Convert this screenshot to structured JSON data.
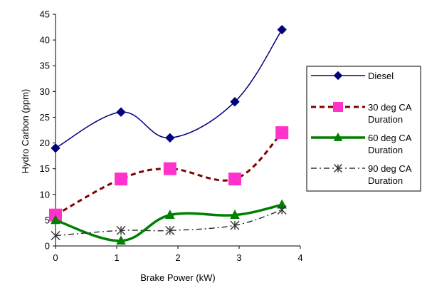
{
  "chart_data": {
    "type": "line",
    "title": "",
    "xlabel": "Brake Power (kW)",
    "ylabel": "Hydro Carbon (ppm)",
    "xlim": [
      0,
      4
    ],
    "ylim": [
      0,
      45
    ],
    "xticks": [
      "0",
      "1",
      "2",
      "3",
      "4"
    ],
    "yticks": [
      "0",
      "5",
      "10",
      "15",
      "20",
      "25",
      "30",
      "35",
      "40",
      "45"
    ],
    "grid": false,
    "legend_position": "right",
    "series": [
      {
        "name": "Diesel",
        "legend_lines": [
          "Diesel"
        ],
        "color": "#000080",
        "marker": "diamond",
        "line_style": "solid",
        "smooth": true,
        "points": [
          {
            "x": 0,
            "y": 19
          },
          {
            "x": 1.07,
            "y": 26
          },
          {
            "x": 1.87,
            "y": 21
          },
          {
            "x": 2.93,
            "y": 28
          },
          {
            "x": 3.7,
            "y": 42
          }
        ]
      },
      {
        "name": "30 deg CA Duration",
        "legend_lines": [
          "30 deg CA",
          "Duration"
        ],
        "color": "#800000",
        "marker_color": "#ff33cc",
        "marker": "square",
        "line_style": "dashed",
        "smooth": true,
        "points": [
          {
            "x": 0,
            "y": 6
          },
          {
            "x": 1.07,
            "y": 13
          },
          {
            "x": 1.87,
            "y": 15
          },
          {
            "x": 2.93,
            "y": 13
          },
          {
            "x": 3.7,
            "y": 22
          }
        ]
      },
      {
        "name": "60 deg CA Duration",
        "legend_lines": [
          "60 deg CA",
          "Duration"
        ],
        "color": "#008000",
        "marker": "triangle",
        "line_style": "solid-thick",
        "smooth": true,
        "points": [
          {
            "x": 0,
            "y": 5
          },
          {
            "x": 1.07,
            "y": 1
          },
          {
            "x": 1.87,
            "y": 6
          },
          {
            "x": 2.93,
            "y": 6
          },
          {
            "x": 3.7,
            "y": 8
          }
        ]
      },
      {
        "name": "90 deg CA Duration",
        "legend_lines": [
          "90 deg CA",
          "Duration"
        ],
        "color": "#333333",
        "marker": "x-star",
        "line_style": "dash-dot",
        "smooth": true,
        "points": [
          {
            "x": 0,
            "y": 2
          },
          {
            "x": 1.07,
            "y": 3
          },
          {
            "x": 1.87,
            "y": 3
          },
          {
            "x": 2.93,
            "y": 4
          },
          {
            "x": 3.7,
            "y": 7
          }
        ]
      }
    ]
  }
}
